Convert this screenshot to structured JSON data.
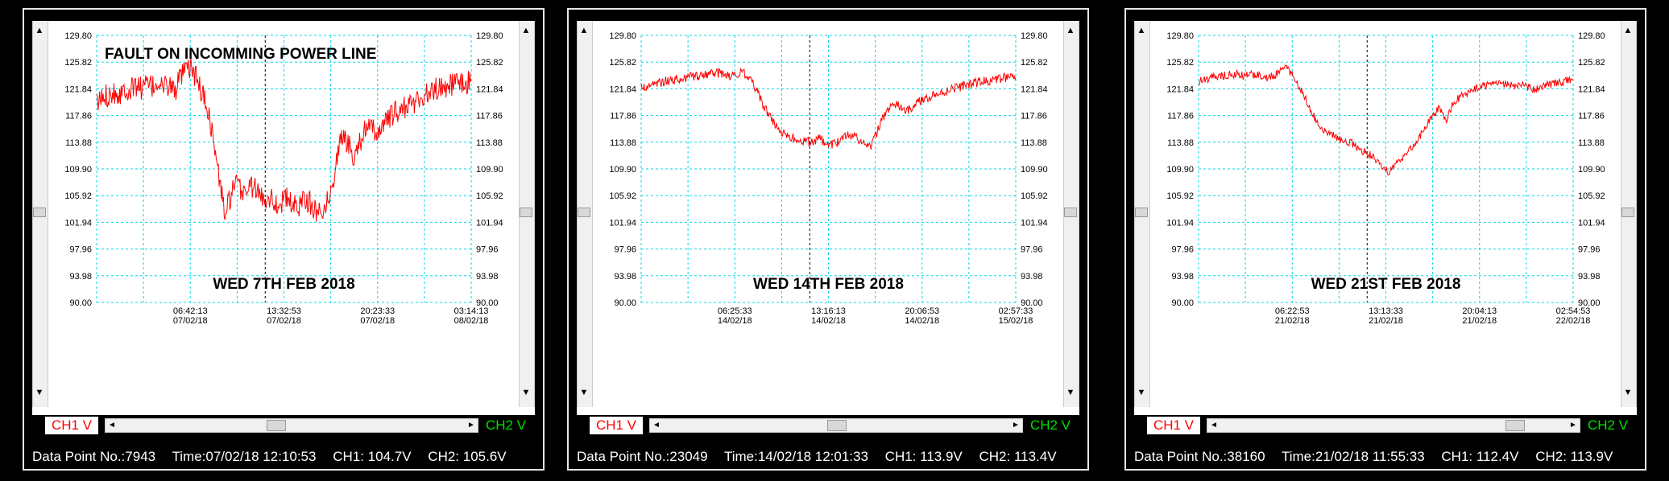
{
  "panels": [
    {
      "status": {
        "point": "Data Point No.:7943",
        "time": "Time:07/02/18 12:10:53",
        "ch1": "CH1: 104.7V",
        "ch2": "CH2: 105.6V"
      },
      "ch1_label": "CH1 V",
      "ch2_label": "CH2 V"
    },
    {
      "status": {
        "point": "Data Point No.:23049",
        "time": "Time:14/02/18 12:01:33",
        "ch1": "CH1: 113.9V",
        "ch2": "CH2: 113.4V"
      },
      "ch1_label": "CH1 V",
      "ch2_label": "CH2 V"
    },
    {
      "status": {
        "point": "Data Point No.:38160",
        "time": "Time:21/02/18 11:55:33",
        "ch1": "CH1: 112.4V",
        "ch2": "CH2: 113.9V"
      },
      "ch1_label": "CH1 V",
      "ch2_label": "CH2 V"
    }
  ],
  "colors": {
    "trace": "#ff0000",
    "grid": "#00d8e8",
    "cursor": "#000000",
    "ch1": "#ff0000",
    "ch2": "#00e000"
  },
  "chart_data": [
    {
      "type": "line",
      "title": "FAULT ON INCOMMING POWER LINE",
      "subtitle": "WED 7TH FEB 2018",
      "ylim": [
        90.0,
        129.8
      ],
      "yticks": [
        "90.00",
        "93.98",
        "97.96",
        "101.94",
        "105.92",
        "109.90",
        "113.88",
        "117.86",
        "121.84",
        "125.82",
        "129.80"
      ],
      "xticks": [
        {
          "time": "06:42:13",
          "date": "07/02/18"
        },
        {
          "time": "13:32:53",
          "date": "07/02/18"
        },
        {
          "time": "20:23:33",
          "date": "07/02/18"
        },
        {
          "time": "03:14:13",
          "date": "08/02/18"
        }
      ],
      "series": [
        {
          "values": [
            119.5,
            120.5,
            121.0,
            121.5,
            121.0,
            122.0,
            121.5,
            122.5,
            122.0,
            122.5,
            122.0,
            123.0,
            122.0,
            122.5,
            121.5,
            123.5,
            124.5,
            125.0,
            123.0,
            121.0,
            118.5,
            113.5,
            108.0,
            103.0,
            106.0,
            107.5,
            106.5,
            107.0,
            107.5,
            106.0,
            105.5,
            106.0,
            104.5,
            105.0,
            105.5,
            104.5,
            104.0,
            106.0,
            105.0,
            103.5,
            104.0,
            104.5,
            106.5,
            112.0,
            115.0,
            113.5,
            112.0,
            114.0,
            115.5,
            116.0,
            115.0,
            116.5,
            117.0,
            118.0,
            118.5,
            119.0,
            119.5,
            120.0,
            120.5,
            121.0,
            121.5,
            122.0,
            122.0,
            122.5,
            122.5,
            123.0,
            122.5,
            123.0
          ]
        }
      ],
      "noise": 1.8,
      "cursor_x": 0.45
    },
    {
      "type": "line",
      "title": "",
      "subtitle": "WED 14TH FEB 2018",
      "ylim": [
        90.0,
        129.8
      ],
      "yticks": [
        "90.00",
        "93.98",
        "97.96",
        "101.94",
        "105.92",
        "109.90",
        "113.88",
        "117.86",
        "121.84",
        "125.82",
        "129.80"
      ],
      "xticks": [
        {
          "time": "06:25:33",
          "date": "14/02/18"
        },
        {
          "time": "13:16:13",
          "date": "14/02/18"
        },
        {
          "time": "20:06:53",
          "date": "14/02/18"
        },
        {
          "time": "02:57:33",
          "date": "15/02/18"
        }
      ],
      "series": [
        {
          "values": [
            122.0,
            122.3,
            122.5,
            122.8,
            123.0,
            123.2,
            123.3,
            123.5,
            123.7,
            123.8,
            124.0,
            124.0,
            124.2,
            124.0,
            123.8,
            124.0,
            124.2,
            123.5,
            122.0,
            120.0,
            118.0,
            116.5,
            115.5,
            115.0,
            114.5,
            114.0,
            114.0,
            113.8,
            114.5,
            113.8,
            113.5,
            114.0,
            114.5,
            115.0,
            114.5,
            113.5,
            113.0,
            115.0,
            117.5,
            119.0,
            119.5,
            119.0,
            118.5,
            119.5,
            120.0,
            120.5,
            121.0,
            121.0,
            121.5,
            122.0,
            122.0,
            122.5,
            122.5,
            122.8,
            123.0,
            123.0,
            123.2,
            123.5,
            123.5,
            123.5
          ]
        }
      ],
      "noise": 0.7,
      "cursor_x": 0.45
    },
    {
      "type": "line",
      "title": "",
      "subtitle": "WED 21ST FEB 2018",
      "ylim": [
        90.0,
        129.8
      ],
      "yticks": [
        "90.00",
        "93.98",
        "97.96",
        "101.94",
        "105.92",
        "109.90",
        "113.88",
        "117.86",
        "121.84",
        "125.82",
        "129.80"
      ],
      "xticks": [
        {
          "time": "06:22:53",
          "date": "21/02/18"
        },
        {
          "time": "13:13:33",
          "date": "21/02/18"
        },
        {
          "time": "20:04:13",
          "date": "21/02/18"
        },
        {
          "time": "02:54:53",
          "date": "22/02/18"
        }
      ],
      "series": [
        {
          "values": [
            123.0,
            123.2,
            123.5,
            123.6,
            123.8,
            124.0,
            124.0,
            123.8,
            123.9,
            124.0,
            123.7,
            123.5,
            123.8,
            124.5,
            125.0,
            123.5,
            122.0,
            120.0,
            118.0,
            116.5,
            115.5,
            115.0,
            114.5,
            114.0,
            113.8,
            113.0,
            112.5,
            112.0,
            111.0,
            110.0,
            109.5,
            110.5,
            111.5,
            112.5,
            113.5,
            115.0,
            116.5,
            118.0,
            119.0,
            117.0,
            119.5,
            120.5,
            121.0,
            121.5,
            122.0,
            122.2,
            122.4,
            122.5,
            122.6,
            122.5,
            122.2,
            122.4,
            122.0,
            121.8,
            122.2,
            122.5,
            122.6,
            122.8,
            123.0,
            123.2
          ]
        }
      ],
      "noise": 0.6,
      "cursor_x": 0.45
    }
  ]
}
